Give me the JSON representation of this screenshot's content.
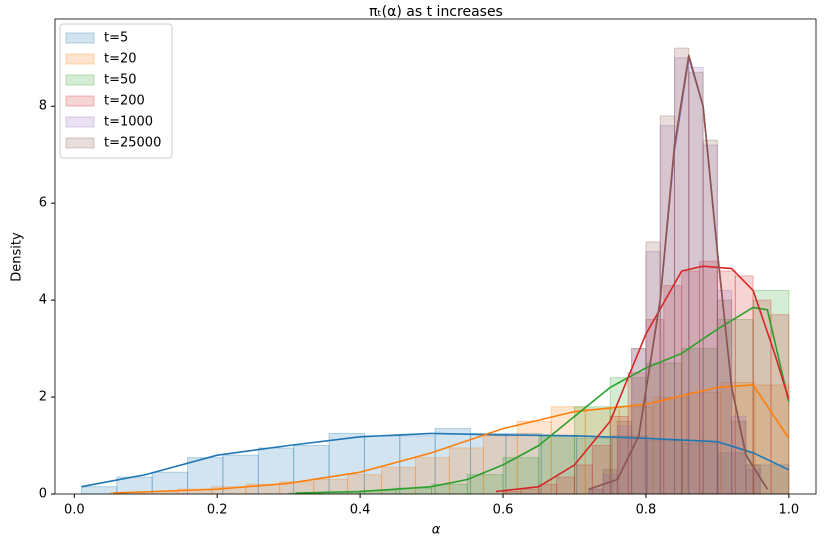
{
  "chart_data": {
    "type": "histogram_kde",
    "title": "πₜ(α) as t increases",
    "xlabel": "α",
    "ylabel": "Density",
    "xlim": [
      -0.027,
      1.038
    ],
    "ylim": [
      0,
      9.8
    ],
    "xticks": [
      {
        "value": 0,
        "label": "0.0"
      },
      {
        "value": 0.2,
        "label": "0.2"
      },
      {
        "value": 0.4,
        "label": "0.4"
      },
      {
        "value": 0.6,
        "label": "0.6"
      },
      {
        "value": 0.8,
        "label": "0.8"
      },
      {
        "value": 1,
        "label": "1.0"
      }
    ],
    "yticks": [
      0,
      2,
      4,
      6,
      8
    ],
    "legend": "upper left",
    "series": [
      {
        "name": "t=5",
        "color": "#1f77b4",
        "bins": [
          0.01,
          0.0595,
          0.109,
          0.1585,
          0.208,
          0.2575,
          0.307,
          0.3565,
          0.406,
          0.4555,
          0.505,
          0.5545,
          0.604,
          0.6535,
          0.703,
          0.7525,
          0.802,
          0.8515,
          0.901,
          0.9505,
          1.0
        ],
        "counts": [
          0.15,
          0.35,
          0.45,
          0.75,
          0.8,
          0.95,
          1.0,
          1.25,
          1.2,
          1.2,
          1.35,
          1.25,
          1.25,
          1.2,
          1.15,
          1.2,
          1.1,
          1.05,
          0.85,
          0.6
        ],
        "kde_x": [
          0.01,
          0.1,
          0.2,
          0.3,
          0.4,
          0.5,
          0.6,
          0.7,
          0.8,
          0.9,
          0.95,
          1.0
        ],
        "kde_y": [
          0.15,
          0.4,
          0.8,
          1.0,
          1.18,
          1.25,
          1.22,
          1.2,
          1.15,
          1.08,
          0.85,
          0.5
        ]
      },
      {
        "name": "t=20",
        "color": "#ff7f0e",
        "bins": [
          0.05,
          0.0975,
          0.145,
          0.1925,
          0.24,
          0.2875,
          0.335,
          0.3825,
          0.43,
          0.4775,
          0.525,
          0.5725,
          0.62,
          0.6675,
          0.715,
          0.7625,
          0.81,
          0.8575,
          0.905,
          0.9525,
          1.0
        ],
        "counts": [
          0.03,
          0.05,
          0.1,
          0.15,
          0.2,
          0.25,
          0.3,
          0.4,
          0.55,
          0.75,
          0.95,
          1.2,
          1.5,
          1.8,
          1.75,
          1.8,
          2.0,
          2.1,
          2.3,
          2.25
        ],
        "kde_x": [
          0.055,
          0.2,
          0.3,
          0.4,
          0.5,
          0.6,
          0.7,
          0.8,
          0.9,
          0.95,
          1.0
        ],
        "kde_y": [
          0.02,
          0.1,
          0.22,
          0.45,
          0.85,
          1.35,
          1.7,
          1.85,
          2.2,
          2.25,
          1.15
        ]
      },
      {
        "name": "t=50",
        "color": "#2ca02c",
        "bins": [
          0.3,
          0.35,
          0.4,
          0.45,
          0.5,
          0.55,
          0.6,
          0.65,
          0.7,
          0.75,
          0.8,
          0.85,
          0.9,
          0.95,
          1.0
        ],
        "counts": [
          0.02,
          0.04,
          0.07,
          0.12,
          0.2,
          0.4,
          0.75,
          1.2,
          1.8,
          2.4,
          2.7,
          3.0,
          3.6,
          4.2
        ],
        "kde_x": [
          0.31,
          0.4,
          0.5,
          0.55,
          0.6,
          0.65,
          0.7,
          0.75,
          0.8,
          0.85,
          0.9,
          0.95,
          0.97,
          1.0
        ],
        "kde_y": [
          0.02,
          0.05,
          0.15,
          0.3,
          0.6,
          1.0,
          1.6,
          2.2,
          2.6,
          2.9,
          3.4,
          3.85,
          3.8,
          1.9
        ]
      },
      {
        "name": "t=200",
        "color": "#d62728",
        "bins": [
          0.6,
          0.625,
          0.65,
          0.675,
          0.7,
          0.725,
          0.75,
          0.775,
          0.8,
          0.825,
          0.85,
          0.875,
          0.9,
          0.925,
          0.95,
          0.975,
          1.0
        ],
        "counts": [
          0.05,
          0.1,
          0.2,
          0.35,
          0.6,
          1.0,
          1.6,
          2.5,
          3.6,
          4.3,
          4.6,
          4.8,
          4.6,
          4.5,
          4.0,
          3.7
        ],
        "kde_x": [
          0.59,
          0.65,
          0.7,
          0.75,
          0.8,
          0.85,
          0.88,
          0.92,
          0.95,
          0.98,
          1.0
        ],
        "kde_y": [
          0.05,
          0.15,
          0.6,
          1.5,
          3.3,
          4.6,
          4.7,
          4.65,
          4.2,
          2.9,
          1.95
        ]
      },
      {
        "name": "t=1000",
        "color": "#9467bd",
        "bins": [
          0.72,
          0.74,
          0.76,
          0.78,
          0.8,
          0.82,
          0.84,
          0.86,
          0.88,
          0.9,
          0.92,
          0.94,
          0.96
        ],
        "counts": [
          0.1,
          0.4,
          1.4,
          3.0,
          5.0,
          7.6,
          9.0,
          8.8,
          7.2,
          4.2,
          1.6,
          0.5
        ],
        "kde_x": [
          0.72,
          0.76,
          0.79,
          0.82,
          0.84,
          0.86,
          0.88,
          0.9,
          0.92,
          0.94,
          0.97
        ],
        "kde_y": [
          0.1,
          0.3,
          1.2,
          4.0,
          7.1,
          9.0,
          8.0,
          5.0,
          2.2,
          0.8,
          0.1
        ]
      },
      {
        "name": "t=25000",
        "color": "#8c564b",
        "bins": [
          0.72,
          0.74,
          0.76,
          0.78,
          0.8,
          0.82,
          0.84,
          0.86,
          0.88,
          0.9,
          0.92,
          0.94,
          0.96
        ],
        "counts": [
          0.1,
          0.5,
          1.5,
          3.0,
          5.2,
          7.8,
          9.2,
          8.7,
          7.3,
          4.0,
          1.5,
          0.6
        ],
        "kde_x": [
          0.72,
          0.76,
          0.79,
          0.82,
          0.84,
          0.86,
          0.88,
          0.9,
          0.92,
          0.94,
          0.97
        ],
        "kde_y": [
          0.1,
          0.3,
          1.2,
          4.0,
          7.2,
          9.05,
          8.0,
          5.0,
          2.2,
          0.8,
          0.1
        ]
      }
    ]
  }
}
